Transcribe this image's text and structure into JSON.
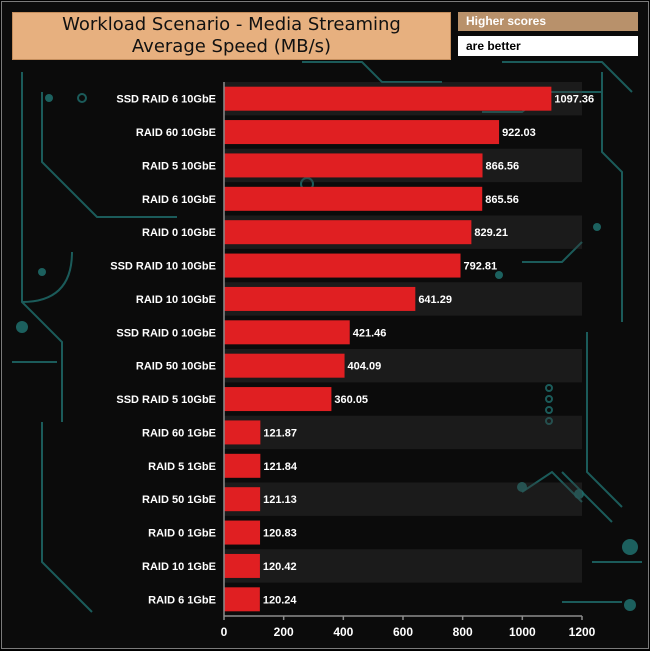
{
  "header": {
    "title_line1": "Workload Scenario - Media Streaming",
    "title_line2": "Average Speed (MB/s)",
    "note_line1": "Higher scores",
    "note_line2": "are better"
  },
  "colors": {
    "bar": "#e01f22",
    "title_bg": "#e7b07f",
    "note_bg": "#b8916b",
    "circuit": "#1e6a68"
  },
  "chart_data": {
    "type": "bar",
    "orientation": "horizontal",
    "title": "Workload Scenario - Media Streaming Average Speed (MB/s)",
    "categories": [
      "SSD RAID 6 10GbE",
      "RAID 60 10GbE",
      "RAID 5 10GbE",
      "RAID 6 10GbE",
      "RAID 0 10GbE",
      "SSD RAID 10 10GbE",
      "RAID 10 10GbE",
      "SSD RAID 0 10GbE",
      "RAID 50 10GbE",
      "SSD RAID 5 10GbE",
      "RAID 60 1GbE",
      "RAID 5 1GbE",
      "RAID 50 1GbE",
      "RAID 0 1GbE",
      "RAID 10 1GbE",
      "RAID 6 1GbE"
    ],
    "values": [
      1097.36,
      922.03,
      866.56,
      865.56,
      829.21,
      792.81,
      641.29,
      421.46,
      404.09,
      360.05,
      121.87,
      121.84,
      121.13,
      120.83,
      120.42,
      120.24
    ],
    "value_labels": [
      "1097.36",
      "922.03",
      "866.56",
      "865.56",
      "829.21",
      "792.81",
      "641.29",
      "421.46",
      "404.09",
      "360.05",
      "121.87",
      "121.84",
      "121.13",
      "120.83",
      "120.42",
      "120.24"
    ],
    "xlim": [
      0,
      1200
    ],
    "xticks": [
      0,
      200,
      400,
      600,
      800,
      1000,
      1200
    ],
    "xtick_labels": [
      "0",
      "200",
      "400",
      "600",
      "800",
      "1000",
      "1200"
    ],
    "grid": false,
    "legend": "none"
  }
}
